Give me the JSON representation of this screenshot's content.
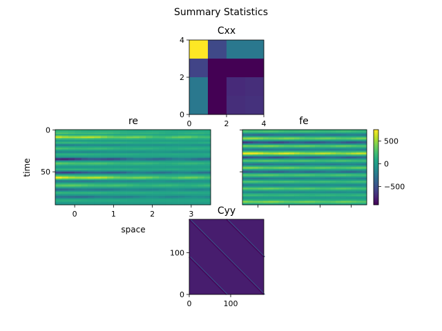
{
  "figure": {
    "title": "Summary Statistics"
  },
  "colormap": "viridis",
  "chart_data": [
    {
      "name": "Cxx",
      "type": "heatmap",
      "title": "Cxx",
      "xlim": [
        0,
        4
      ],
      "ylim": [
        0,
        4
      ],
      "xticks": [
        "0",
        "2",
        "4"
      ],
      "yticks": [
        "0",
        "2",
        "4"
      ],
      "vmin": 0,
      "vmax": 1,
      "note_rows_top_to_bottom": true,
      "cells": [
        [
          1.0,
          0.22,
          0.4,
          0.4
        ],
        [
          0.2,
          0.0,
          0.0,
          0.0
        ],
        [
          0.4,
          0.0,
          0.12,
          0.13
        ],
        [
          0.4,
          0.0,
          0.13,
          0.14
        ]
      ]
    },
    {
      "name": "re",
      "type": "heatmap",
      "title": "re",
      "xlabel": "space",
      "ylabel": "time",
      "xlim": [
        -0.5,
        3.5
      ],
      "ylim": [
        89.5,
        -0.5
      ],
      "xticks": [
        "0",
        "1",
        "2",
        "3"
      ],
      "yticks": [
        "0",
        "50"
      ],
      "xtick_values": [
        0,
        1,
        2,
        3
      ],
      "ytick_values": [
        0,
        50
      ],
      "vmin": -900,
      "vmax": 750,
      "profile_rows": 90,
      "profile": [
        120,
        150,
        100,
        200,
        250,
        120,
        60,
        380,
        520,
        600,
        300,
        150,
        20,
        -60,
        80,
        160,
        90,
        -120,
        -250,
        -130,
        40,
        100,
        220,
        150,
        30,
        -80,
        -200,
        -150,
        30,
        120,
        80,
        20,
        -20,
        -250,
        -600,
        -800,
        -500,
        -150,
        50,
        200,
        300,
        200,
        100,
        0,
        -100,
        -50,
        50,
        150,
        50,
        -200,
        -450,
        -650,
        -400,
        -100,
        100,
        250,
        500,
        650,
        500,
        200,
        -100,
        -300,
        -250,
        -100,
        100,
        200,
        300,
        250,
        150,
        -50,
        -200,
        -350,
        -300,
        -150,
        50,
        150,
        100,
        0,
        -100,
        -250,
        -400,
        -300,
        -100,
        50,
        100,
        80,
        30,
        -50,
        -100,
        -50
      ],
      "fade": 0.55
    },
    {
      "name": "fe",
      "type": "heatmap",
      "title": "fe",
      "vmin": -900,
      "vmax": 750,
      "profile_rows": 90,
      "profile": [
        150,
        200,
        250,
        100,
        -100,
        -300,
        -400,
        -200,
        100,
        300,
        450,
        300,
        100,
        -200,
        -500,
        -650,
        -400,
        -100,
        200,
        400,
        300,
        100,
        -100,
        -300,
        -200,
        0,
        250,
        500,
        700,
        500,
        200,
        -100,
        -400,
        -600,
        -300,
        0,
        200,
        300,
        150,
        -50,
        -200,
        -350,
        -200,
        0,
        200,
        400,
        300,
        100,
        -100,
        -300,
        -500,
        -300,
        0,
        200,
        300,
        200,
        50,
        -150,
        -300,
        -200,
        0,
        150,
        250,
        150,
        0,
        -150,
        -250,
        -150,
        0,
        200,
        350,
        250,
        100,
        -50,
        -200,
        -150,
        0,
        100,
        200,
        100,
        0,
        -100,
        -50,
        50,
        150,
        300,
        450,
        300,
        100,
        -50
      ],
      "fade": 0.25,
      "colorbar": {
        "ticks": [
          "500",
          "0",
          "−500"
        ],
        "tick_values": [
          500,
          0,
          -500
        ],
        "vmin": -900,
        "vmax": 750
      }
    },
    {
      "name": "Cyy",
      "type": "heatmap",
      "title": "Cyy",
      "xlim": [
        0,
        180
      ],
      "ylim": [
        0,
        180
      ],
      "xticks": [
        "0",
        "100"
      ],
      "yticks": [
        "0",
        "100"
      ],
      "xtick_values": [
        0,
        100
      ],
      "ytick_values": [
        0,
        100
      ],
      "vmin": 0,
      "vmax": 1,
      "background": 0.08,
      "block_size": 90
    }
  ]
}
